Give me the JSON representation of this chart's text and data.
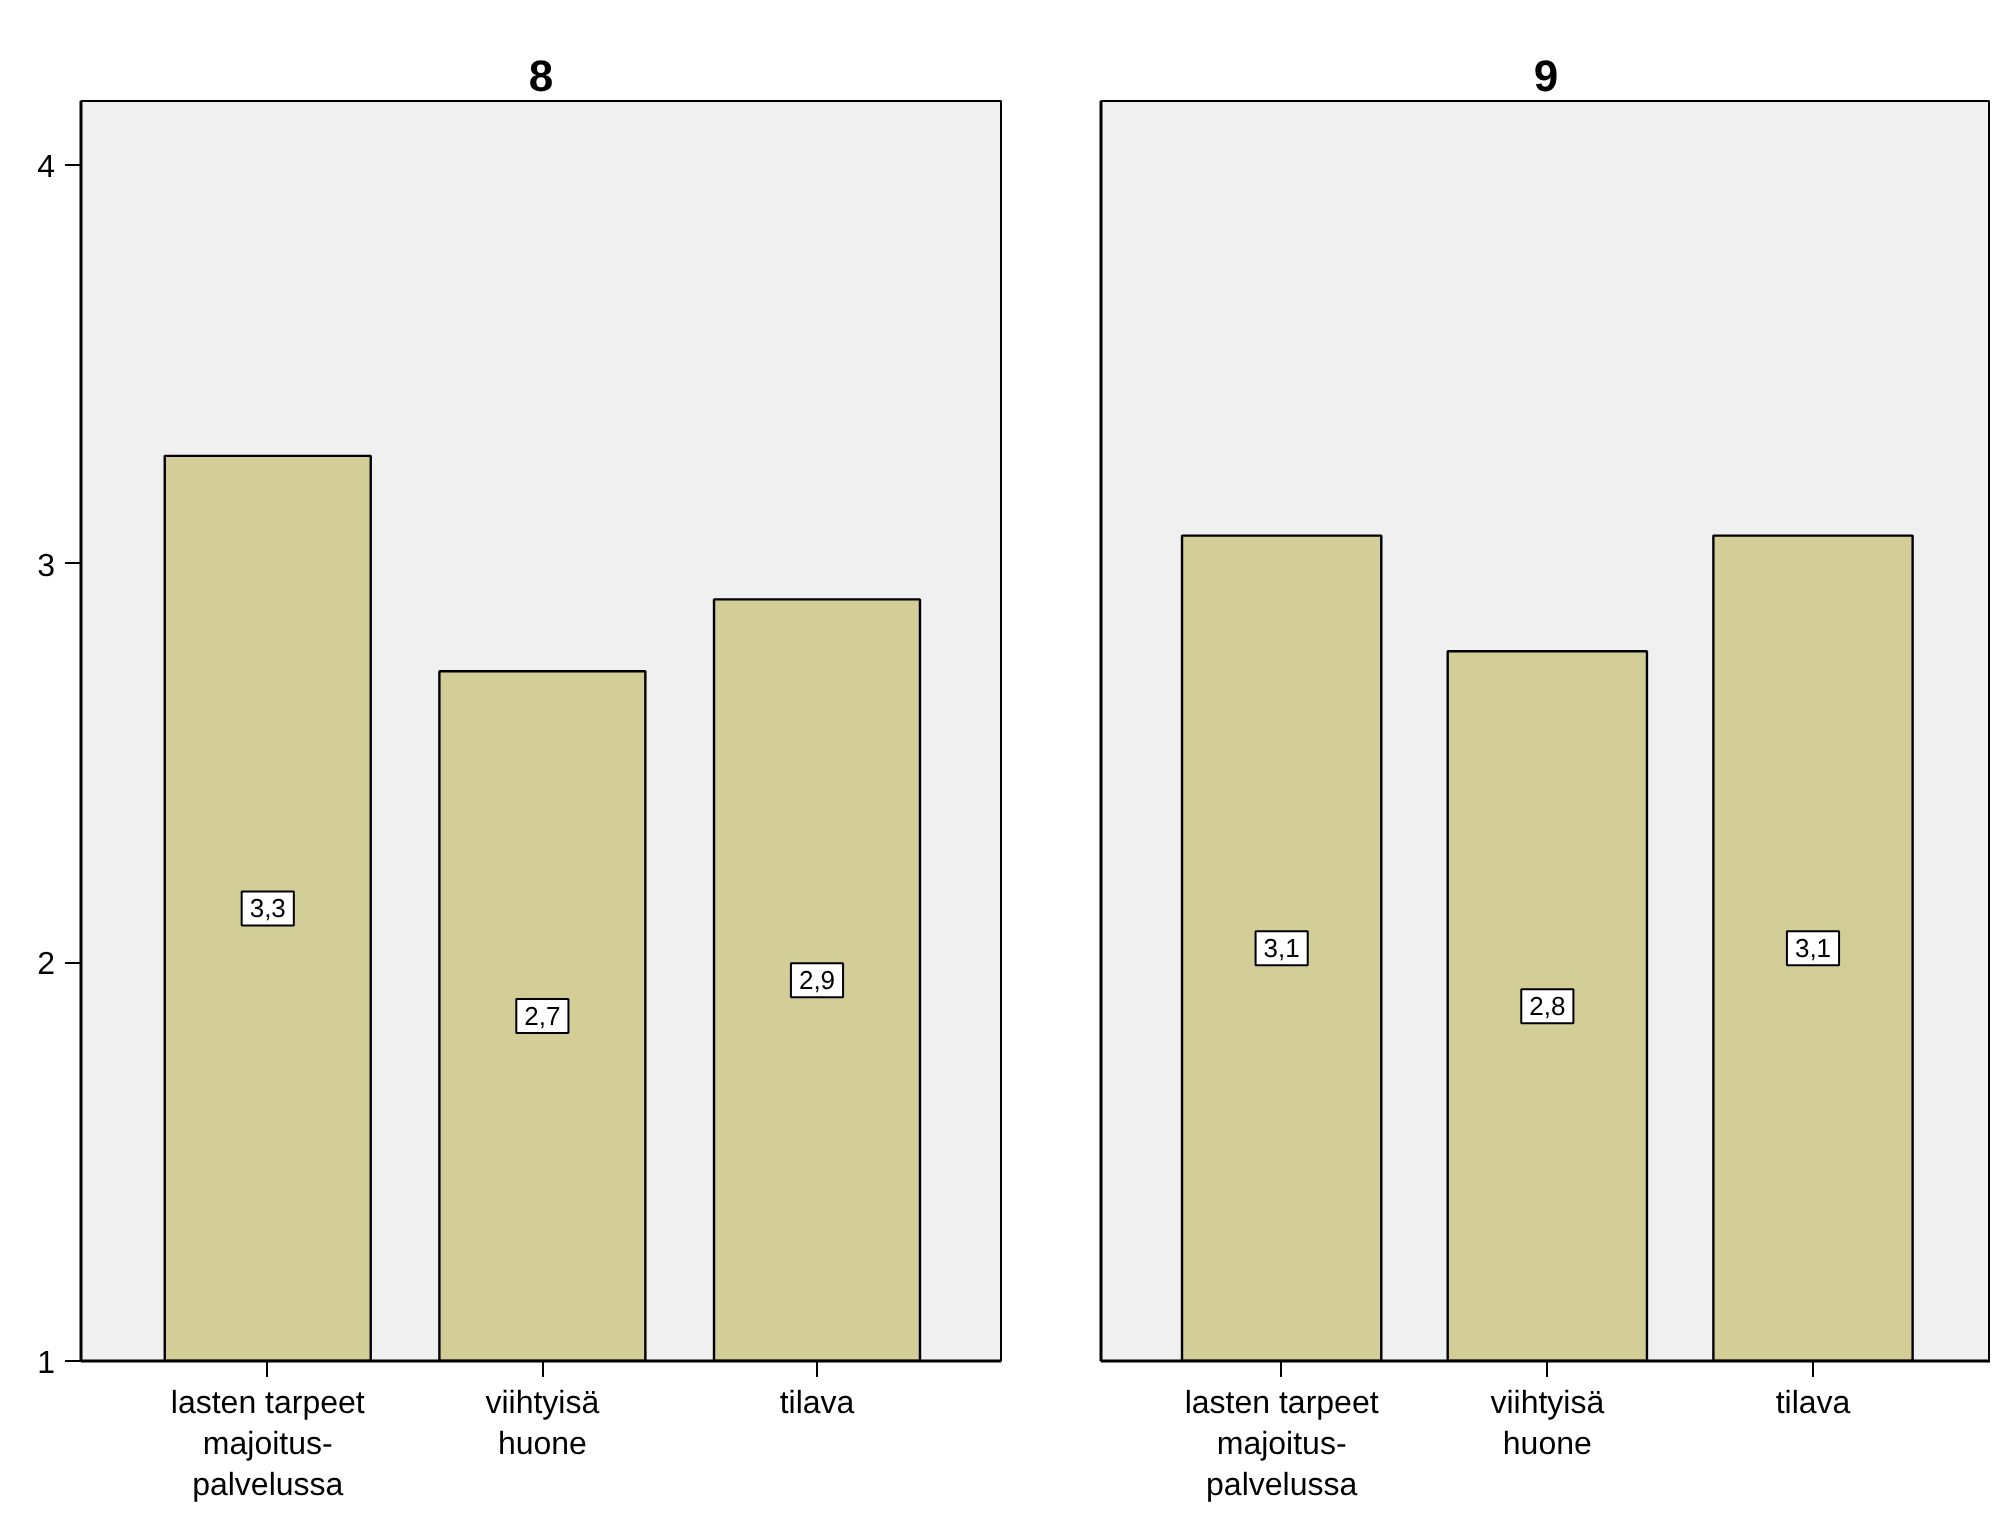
{
  "chart_data": [
    {
      "type": "bar",
      "title": "8",
      "categories": [
        "lasten tarpeet\nmajoitus-\npalvelussa",
        "viihtyisä\nhuone",
        "tilava"
      ],
      "values": [
        3.27,
        2.73,
        2.91
      ],
      "value_labels": [
        "3,3",
        "2,7",
        "2,9"
      ],
      "color": "#d3ce98",
      "ylim": [
        1,
        4.16
      ],
      "yticks": [
        1,
        2,
        3,
        4
      ]
    },
    {
      "type": "bar",
      "title": "9",
      "categories": [
        "lasten tarpeet\nmajoitus-\npalvelussa",
        "viihtyisä\nhuone",
        "tilava"
      ],
      "values": [
        3.07,
        2.78,
        3.07
      ],
      "value_labels": [
        "3,1",
        "2,8",
        "3,1"
      ],
      "color": "#d3ce98",
      "ylim": [
        1,
        4.16
      ],
      "tick_labels": "x"
    }
  ]
}
